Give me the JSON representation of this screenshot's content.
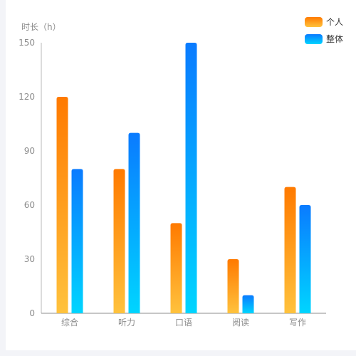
{
  "chart_data": {
    "type": "bar",
    "ylabel": "时长（h）",
    "categories": [
      "综合",
      "听力",
      "口语",
      "阅读",
      "写作"
    ],
    "ylim": [
      0,
      150
    ],
    "yticks": [
      0,
      30,
      60,
      90,
      120,
      150
    ],
    "legend_position": "top-right",
    "grid": false,
    "series": [
      {
        "name": "个人",
        "values": [
          120,
          80,
          50,
          30,
          70
        ],
        "color_top": "#ff7a00",
        "color_bottom": "#ffc23d"
      },
      {
        "name": "整体",
        "values": [
          80,
          100,
          150,
          10,
          60
        ],
        "color_top": "#0a7bff",
        "color_bottom": "#00d5ff"
      }
    ]
  }
}
